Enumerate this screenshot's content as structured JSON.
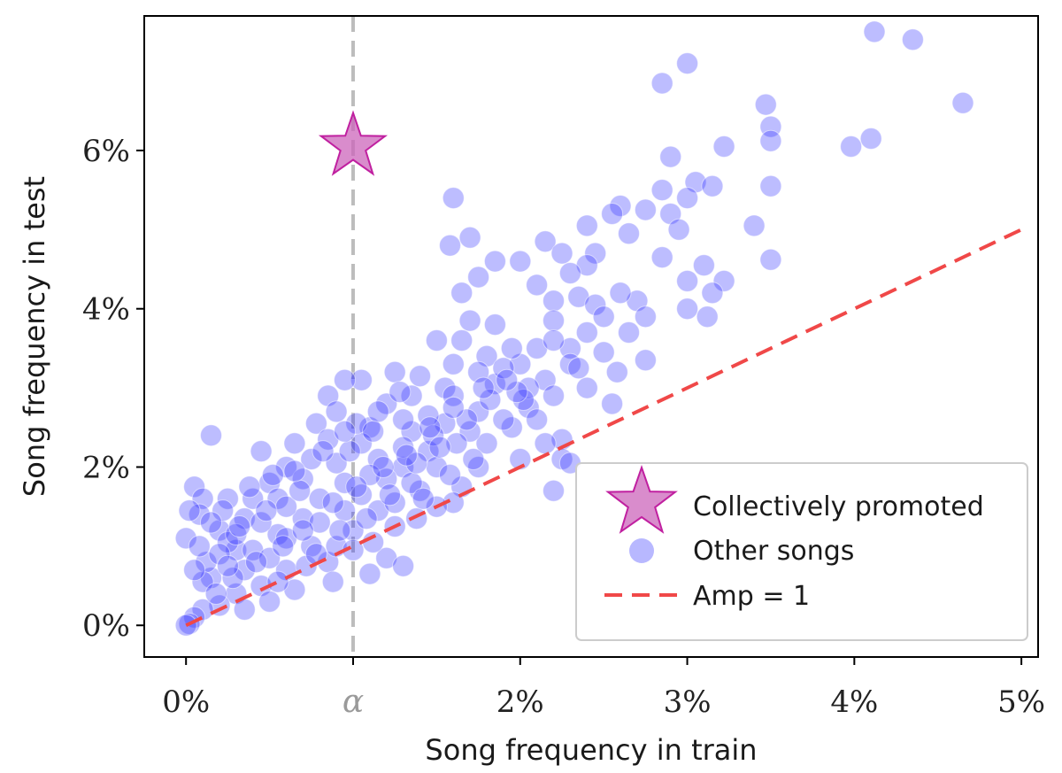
{
  "chart_data": {
    "type": "scatter",
    "xlabel": "Song frequency in train",
    "ylabel": "Song frequency in test",
    "xlim": [
      -0.25,
      5.1
    ],
    "ylim": [
      -0.4,
      7.7
    ],
    "x_ticks": [
      {
        "value": 0,
        "label": "0%"
      },
      {
        "value": 1,
        "label": "α"
      },
      {
        "value": 2,
        "label": "2%"
      },
      {
        "value": 3,
        "label": "3%"
      },
      {
        "value": 4,
        "label": "4%"
      },
      {
        "value": 5,
        "label": "5%"
      }
    ],
    "y_ticks": [
      {
        "value": 0,
        "label": "0%"
      },
      {
        "value": 2,
        "label": "2%"
      },
      {
        "value": 4,
        "label": "4%"
      },
      {
        "value": 6,
        "label": "6%"
      }
    ],
    "grid": false,
    "legend_position": "bottom-right",
    "alpha_line": {
      "x": 1,
      "color": "#bdbdbd"
    },
    "reference_line": {
      "name": "Amp = 1",
      "slope": 1,
      "x_range": [
        0,
        5
      ],
      "color": "#f04848"
    },
    "promoted": {
      "name": "Collectively promoted",
      "x": 1.0,
      "y": 6.05,
      "color": "#cc66bb"
    },
    "other_songs": {
      "name": "Other songs",
      "color": "#3333ff",
      "points": [
        [
          4.12,
          7.5
        ],
        [
          4.35,
          7.4
        ],
        [
          3.0,
          7.1
        ],
        [
          2.85,
          6.85
        ],
        [
          4.65,
          6.6
        ],
        [
          3.47,
          6.58
        ],
        [
          3.5,
          6.3
        ],
        [
          3.5,
          6.12
        ],
        [
          4.1,
          6.15
        ],
        [
          3.98,
          6.05
        ],
        [
          3.22,
          6.05
        ],
        [
          2.9,
          5.92
        ],
        [
          3.05,
          5.6
        ],
        [
          3.15,
          5.55
        ],
        [
          3.5,
          5.55
        ],
        [
          3.0,
          5.4
        ],
        [
          2.85,
          5.5
        ],
        [
          2.6,
          5.3
        ],
        [
          2.75,
          5.25
        ],
        [
          2.9,
          5.2
        ],
        [
          3.4,
          5.05
        ],
        [
          2.55,
          5.2
        ],
        [
          2.65,
          4.95
        ],
        [
          2.4,
          5.05
        ],
        [
          2.95,
          5.0
        ],
        [
          3.1,
          4.55
        ],
        [
          3.0,
          4.35
        ],
        [
          3.22,
          4.35
        ],
        [
          3.15,
          4.2
        ],
        [
          3.5,
          4.62
        ],
        [
          2.85,
          4.65
        ],
        [
          3.0,
          4.0
        ],
        [
          3.12,
          3.9
        ],
        [
          2.7,
          4.1
        ],
        [
          2.75,
          3.9
        ],
        [
          2.6,
          4.2
        ],
        [
          2.75,
          3.35
        ],
        [
          2.58,
          3.2
        ],
        [
          2.55,
          2.8
        ],
        [
          1.6,
          5.4
        ],
        [
          1.7,
          4.9
        ],
        [
          1.58,
          4.8
        ],
        [
          1.85,
          4.6
        ],
        [
          2.0,
          4.6
        ],
        [
          2.15,
          4.85
        ],
        [
          2.25,
          4.7
        ],
        [
          2.45,
          4.7
        ],
        [
          2.4,
          4.55
        ],
        [
          2.3,
          4.45
        ],
        [
          2.1,
          4.3
        ],
        [
          2.2,
          4.1
        ],
        [
          2.35,
          4.15
        ],
        [
          2.45,
          4.05
        ],
        [
          2.2,
          3.85
        ],
        [
          2.4,
          3.7
        ],
        [
          2.5,
          3.9
        ],
        [
          2.3,
          3.5
        ],
        [
          2.1,
          3.5
        ],
        [
          2.0,
          3.3
        ],
        [
          2.15,
          3.1
        ],
        [
          2.3,
          3.3
        ],
        [
          2.4,
          3.0
        ],
        [
          2.2,
          2.9
        ],
        [
          2.05,
          2.75
        ],
        [
          2.1,
          2.6
        ],
        [
          2.25,
          2.35
        ],
        [
          2.15,
          2.3
        ],
        [
          2.0,
          2.1
        ],
        [
          2.25,
          2.1
        ],
        [
          2.3,
          2.05
        ],
        [
          2.2,
          1.7
        ],
        [
          1.75,
          2.0
        ],
        [
          1.65,
          1.75
        ],
        [
          1.6,
          1.55
        ],
        [
          1.5,
          1.5
        ],
        [
          1.38,
          1.35
        ],
        [
          1.2,
          0.85
        ],
        [
          1.3,
          0.75
        ],
        [
          1.1,
          0.65
        ],
        [
          1.75,
          4.4
        ],
        [
          1.65,
          4.2
        ],
        [
          1.7,
          3.85
        ],
        [
          1.5,
          3.6
        ],
        [
          1.6,
          3.3
        ],
        [
          1.8,
          3.4
        ],
        [
          1.55,
          3.0
        ],
        [
          1.35,
          2.9
        ],
        [
          1.25,
          3.2
        ],
        [
          1.2,
          2.8
        ],
        [
          1.1,
          2.5
        ],
        [
          1.15,
          2.1
        ],
        [
          1.3,
          2.0
        ],
        [
          1.4,
          1.7
        ],
        [
          1.05,
          3.1
        ],
        [
          0.95,
          3.1
        ],
        [
          0.85,
          2.9
        ],
        [
          0.78,
          2.55
        ],
        [
          0.9,
          2.7
        ],
        [
          0.6,
          2.0
        ],
        [
          0.65,
          2.3
        ],
        [
          0.45,
          2.2
        ],
        [
          0.5,
          1.8
        ],
        [
          0.4,
          1.6
        ],
        [
          0.25,
          1.6
        ],
        [
          0.15,
          2.4
        ],
        [
          0.05,
          1.75
        ],
        [
          0.1,
          1.6
        ],
        [
          0.08,
          1.4
        ],
        [
          0.02,
          1.45
        ],
        [
          0.0,
          1.1
        ],
        [
          0.2,
          1.2
        ],
        [
          0.3,
          0.95
        ],
        [
          0.55,
          1.15
        ],
        [
          0.7,
          1.35
        ],
        [
          0.75,
          1.0
        ],
        [
          0.85,
          0.8
        ],
        [
          0.6,
          0.7
        ],
        [
          0.45,
          0.5
        ],
        [
          0.3,
          0.4
        ],
        [
          0.2,
          0.25
        ],
        [
          0.1,
          0.2
        ],
        [
          0.05,
          0.1
        ],
        [
          0.02,
          0.02
        ],
        [
          0.0,
          0.0
        ],
        [
          0.15,
          0.6
        ],
        [
          0.35,
          0.7
        ],
        [
          0.5,
          0.3
        ],
        [
          0.65,
          0.45
        ],
        [
          0.9,
          1.0
        ],
        [
          1.0,
          1.2
        ],
        [
          1.15,
          1.45
        ],
        [
          0.95,
          1.8
        ],
        [
          0.8,
          1.6
        ],
        [
          1.05,
          1.65
        ],
        [
          1.25,
          1.55
        ],
        [
          1.45,
          2.2
        ],
        [
          1.35,
          2.45
        ],
        [
          1.55,
          2.55
        ],
        [
          1.75,
          2.7
        ],
        [
          1.85,
          3.05
        ],
        [
          1.95,
          3.5
        ],
        [
          1.85,
          3.8
        ],
        [
          1.65,
          3.6
        ],
        [
          1.4,
          3.15
        ],
        [
          1.05,
          2.3
        ],
        [
          0.9,
          2.05
        ],
        [
          0.7,
          1.85
        ],
        [
          0.55,
          1.6
        ],
        [
          0.35,
          1.35
        ],
        [
          0.25,
          1.05
        ],
        [
          0.12,
          0.8
        ],
        [
          0.4,
          0.95
        ],
        [
          0.6,
          1.1
        ],
        [
          0.8,
          1.3
        ],
        [
          0.95,
          1.45
        ],
        [
          1.2,
          1.85
        ],
        [
          1.3,
          2.25
        ],
        [
          1.45,
          2.65
        ],
        [
          1.6,
          2.9
        ],
        [
          1.75,
          3.2
        ],
        [
          1.9,
          3.25
        ],
        [
          2.05,
          3.0
        ],
        [
          2.35,
          3.25
        ],
        [
          2.5,
          3.45
        ],
        [
          2.65,
          3.7
        ],
        [
          2.2,
          3.6
        ],
        [
          1.95,
          2.5
        ],
        [
          1.8,
          2.3
        ],
        [
          1.7,
          2.45
        ],
        [
          1.5,
          2.0
        ],
        [
          1.35,
          1.8
        ],
        [
          1.1,
          1.9
        ],
        [
          0.98,
          2.2
        ],
        [
          0.75,
          2.1
        ],
        [
          0.6,
          1.5
        ],
        [
          0.45,
          1.3
        ],
        [
          0.3,
          1.15
        ],
        [
          0.2,
          0.9
        ],
        [
          0.1,
          0.55
        ],
        [
          0.28,
          0.6
        ],
        [
          0.5,
          0.85
        ],
        [
          0.72,
          0.75
        ],
        [
          0.88,
          0.55
        ],
        [
          1.0,
          0.95
        ],
        [
          1.12,
          1.05
        ],
        [
          1.25,
          1.25
        ],
        [
          1.42,
          1.6
        ],
        [
          1.58,
          1.9
        ],
        [
          1.72,
          2.1
        ],
        [
          1.9,
          2.6
        ],
        [
          2.02,
          2.85
        ],
        [
          1.62,
          2.3
        ],
        [
          1.48,
          2.4
        ],
        [
          1.3,
          2.6
        ],
        [
          1.15,
          2.7
        ],
        [
          1.02,
          2.55
        ],
        [
          0.85,
          2.35
        ],
        [
          0.68,
          1.7
        ],
        [
          0.52,
          1.9
        ],
        [
          0.38,
          1.75
        ],
        [
          0.22,
          1.45
        ],
        [
          0.08,
          1.0
        ],
        [
          0.18,
          0.4
        ],
        [
          0.35,
          0.2
        ],
        [
          0.55,
          0.55
        ],
        [
          0.78,
          0.9
        ],
        [
          0.92,
          1.2
        ],
        [
          1.08,
          1.35
        ],
        [
          1.22,
          1.65
        ],
        [
          1.38,
          2.05
        ],
        [
          1.52,
          2.25
        ],
        [
          1.68,
          2.6
        ],
        [
          1.82,
          2.85
        ],
        [
          1.98,
          2.95
        ],
        [
          1.28,
          2.95
        ],
        [
          1.12,
          2.45
        ],
        [
          0.95,
          2.45
        ],
        [
          0.82,
          2.2
        ],
        [
          0.65,
          1.95
        ],
        [
          0.48,
          1.45
        ],
        [
          0.32,
          1.25
        ],
        [
          0.15,
          1.3
        ],
        [
          0.05,
          0.7
        ],
        [
          0.25,
          0.75
        ],
        [
          0.42,
          0.8
        ],
        [
          0.58,
          1.0
        ],
        [
          0.7,
          1.2
        ],
        [
          0.88,
          1.55
        ],
        [
          1.02,
          1.75
        ],
        [
          1.18,
          2.0
        ],
        [
          1.32,
          2.15
        ],
        [
          1.46,
          2.5
        ],
        [
          1.6,
          2.75
        ],
        [
          1.78,
          3.0
        ],
        [
          1.92,
          3.1
        ]
      ]
    }
  }
}
